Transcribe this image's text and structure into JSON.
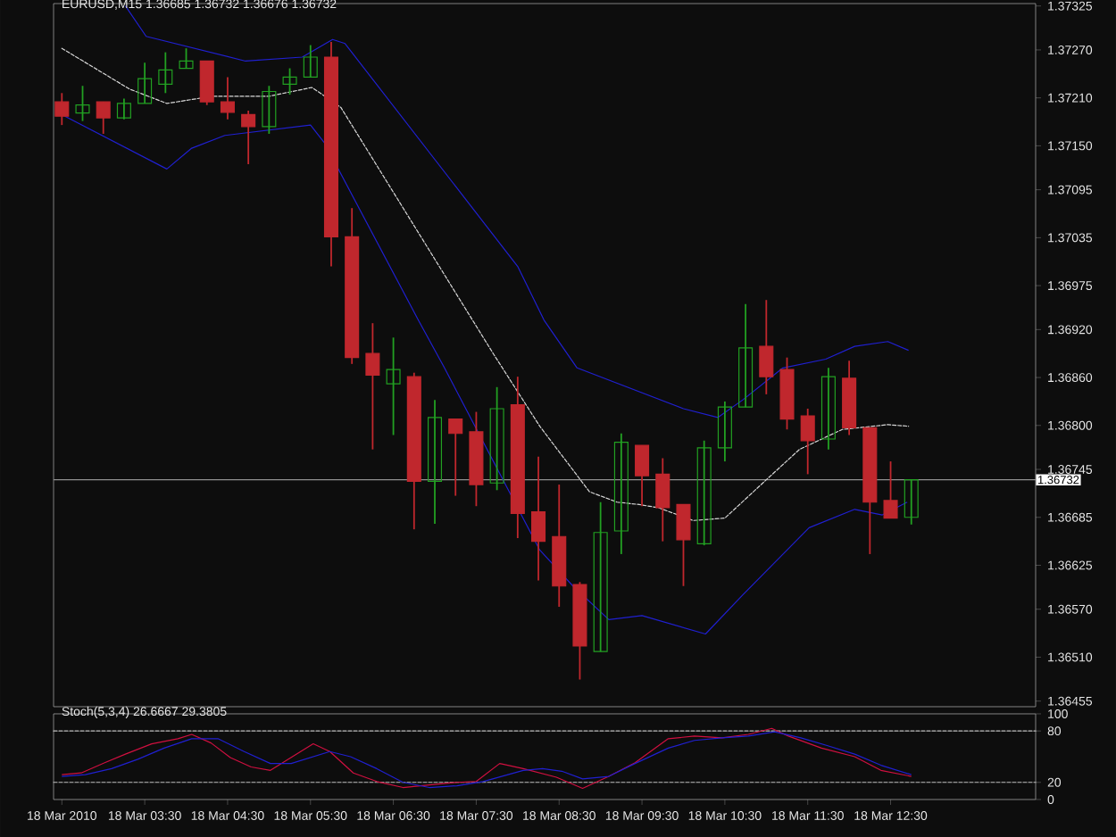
{
  "chart_data": [
    {
      "type": "candlestick",
      "title": "EURUSD,M15 1.36685 1.36732 1.36676 1.36732",
      "x": [
        "2010-03-18T02:30",
        "2010-03-18T02:45",
        "2010-03-18T03:00",
        "2010-03-18T03:15",
        "2010-03-18T03:30",
        "2010-03-18T03:45",
        "2010-03-18T04:00",
        "2010-03-18T04:15",
        "2010-03-18T04:30",
        "2010-03-18T04:45",
        "2010-03-18T05:00",
        "2010-03-18T05:15",
        "2010-03-18T05:30",
        "2010-03-18T05:45",
        "2010-03-18T06:00",
        "2010-03-18T06:15",
        "2010-03-18T06:30",
        "2010-03-18T06:45",
        "2010-03-18T07:00",
        "2010-03-18T07:15",
        "2010-03-18T07:30",
        "2010-03-18T07:45",
        "2010-03-18T08:00",
        "2010-03-18T08:15",
        "2010-03-18T08:30",
        "2010-03-18T08:45",
        "2010-03-18T09:00",
        "2010-03-18T09:15",
        "2010-03-18T09:30",
        "2010-03-18T09:45",
        "2010-03-18T10:00",
        "2010-03-18T10:15",
        "2010-03-18T10:30",
        "2010-03-18T10:45",
        "2010-03-18T11:00",
        "2010-03-18T11:15",
        "2010-03-18T11:30",
        "2010-03-18T11:45",
        "2010-03-18T12:00",
        "2010-03-18T12:15",
        "2010-03-18T12:30",
        "2010-03-18T12:45"
      ],
      "ohlc": [
        [
          1.37205,
          1.37216,
          1.37176,
          1.37187
        ],
        [
          1.37191,
          1.37225,
          1.37181,
          1.37201
        ],
        [
          1.37205,
          1.37205,
          1.37165,
          1.37185
        ],
        [
          1.37185,
          1.37209,
          1.37183,
          1.37203
        ],
        [
          1.37203,
          1.37254,
          1.37203,
          1.37234
        ],
        [
          1.37227,
          1.37267,
          1.37216,
          1.37245
        ],
        [
          1.37247,
          1.37272,
          1.37247,
          1.37256
        ],
        [
          1.37256,
          1.37256,
          1.37201,
          1.37205
        ],
        [
          1.37205,
          1.37236,
          1.37183,
          1.37192
        ],
        [
          1.37189,
          1.37194,
          1.37127,
          1.37174
        ],
        [
          1.37174,
          1.37225,
          1.37165,
          1.37218
        ],
        [
          1.37227,
          1.37247,
          1.37214,
          1.37236
        ],
        [
          1.37236,
          1.37276,
          1.37236,
          1.37261
        ],
        [
          1.37261,
          1.3728,
          1.36999,
          1.37036
        ],
        [
          1.37036,
          1.37072,
          1.36877,
          1.36885
        ],
        [
          1.3689,
          1.36928,
          1.3677,
          1.36863
        ],
        [
          1.36852,
          1.3691,
          1.36788,
          1.3687
        ],
        [
          1.36861,
          1.36866,
          1.3667,
          1.3673
        ],
        [
          1.3673,
          1.36832,
          1.36677,
          1.3681
        ],
        [
          1.36808,
          1.36808,
          1.36712,
          1.3679
        ],
        [
          1.36792,
          1.36817,
          1.36699,
          1.36726
        ],
        [
          1.36728,
          1.36848,
          1.36719,
          1.36821
        ],
        [
          1.36826,
          1.36861,
          1.36659,
          1.3669
        ],
        [
          1.36692,
          1.36761,
          1.36606,
          1.36655
        ],
        [
          1.36661,
          1.36726,
          1.36573,
          1.36599
        ],
        [
          1.36601,
          1.36604,
          1.36482,
          1.36524
        ],
        [
          1.36517,
          1.36704,
          1.36517,
          1.36666
        ],
        [
          1.36668,
          1.3679,
          1.36639,
          1.36779
        ],
        [
          1.36775,
          1.36775,
          1.36699,
          1.36737
        ],
        [
          1.36739,
          1.36759,
          1.36655,
          1.36697
        ],
        [
          1.36701,
          1.36701,
          1.36599,
          1.36657
        ],
        [
          1.36652,
          1.36781,
          1.3665,
          1.36772
        ],
        [
          1.36772,
          1.3683,
          1.36755,
          1.36823
        ],
        [
          1.36823,
          1.36952,
          1.36823,
          1.36897
        ],
        [
          1.36899,
          1.36957,
          1.36839,
          1.36861
        ],
        [
          1.3687,
          1.36885,
          1.36795,
          1.36808
        ],
        [
          1.36812,
          1.36821,
          1.36739,
          1.36781
        ],
        [
          1.36783,
          1.36872,
          1.3677,
          1.36861
        ],
        [
          1.36859,
          1.36881,
          1.36788,
          1.36797
        ],
        [
          1.36797,
          1.36797,
          1.36639,
          1.36704
        ],
        [
          1.36706,
          1.36755,
          1.36684,
          1.36684
        ],
        [
          1.36685,
          1.36732,
          1.36676,
          1.36732
        ]
      ],
      "colors": [
        "#c0272d",
        "#22a022",
        "#c0272d",
        "#22a022",
        "#22a022",
        "#22a022",
        "#22a022",
        "#c0272d",
        "#c0272d",
        "#c0272d",
        "#22a022",
        "#22a022",
        "#22a022",
        "#c0272d",
        "#c0272d",
        "#c0272d",
        "#22a022",
        "#c0272d",
        "#22a022",
        "#c0272d",
        "#c0272d",
        "#22a022",
        "#c0272d",
        "#c0272d",
        "#c0272d",
        "#c0272d",
        "#22a022",
        "#22a022",
        "#c0272d",
        "#c0272d",
        "#c0272d",
        "#22a022",
        "#22a022",
        "#22a022",
        "#c0272d",
        "#c0272d",
        "#c0272d",
        "#22a022",
        "#c0272d",
        "#c0272d",
        "#c0272d",
        "#22a022"
      ],
      "series": [
        {
          "type": "line",
          "color": "#2020d0",
          "x": [
            "2010-03-18T03:16",
            "2010-03-18T03:31",
            "2010-03-18T04:43",
            "2010-03-18T05:24",
            "2010-03-18T05:46",
            "2010-03-18T05:55",
            "2010-03-18T08:00",
            "2010-03-18T08:19",
            "2010-03-18T08:43",
            "2010-03-18T10:00",
            "2010-03-18T10:25",
            "2010-03-18T10:43",
            "2010-03-18T11:12",
            "2010-03-18T11:43",
            "2010-03-18T12:04",
            "2010-03-18T12:28",
            "2010-03-18T12:43"
          ],
          "values": [
            1.37325,
            1.37287,
            1.37256,
            1.37261,
            1.37283,
            1.37278,
            1.36999,
            1.36932,
            1.36872,
            1.36821,
            1.3681,
            1.36832,
            1.36872,
            1.36883,
            1.36899,
            1.36905,
            1.36894
          ]
        },
        {
          "type": "line",
          "color": "#d8d8d8",
          "line_style": "dashed",
          "x": [
            "2010-03-18T02:30",
            "2010-03-18T03:19",
            "2010-03-18T03:46",
            "2010-03-18T04:19",
            "2010-03-18T05:00",
            "2010-03-18T05:31",
            "2010-03-18T05:37",
            "2010-03-18T05:52",
            "2010-03-18T07:43",
            "2010-03-18T08:16",
            "2010-03-18T08:52",
            "2010-03-18T09:12",
            "2010-03-18T09:28",
            "2010-03-18T09:42",
            "2010-03-18T10:07",
            "2010-03-18T10:30",
            "2010-03-18T11:00",
            "2010-03-18T11:24",
            "2010-03-18T11:55",
            "2010-03-18T12:28",
            "2010-03-18T12:43"
          ],
          "values": [
            1.37272,
            1.37221,
            1.37203,
            1.37212,
            1.37212,
            1.37223,
            1.37216,
            1.37198,
            1.36888,
            1.36799,
            1.36717,
            1.36704,
            1.36701,
            1.36697,
            1.36681,
            1.36684,
            1.36732,
            1.3677,
            1.36795,
            1.36801,
            1.36799
          ]
        },
        {
          "type": "line",
          "color": "#2020d0",
          "x": [
            "2010-03-18T02:30",
            "2010-03-18T03:46",
            "2010-03-18T04:04",
            "2010-03-18T04:28",
            "2010-03-18T05:30",
            "2010-03-18T05:40",
            "2010-03-18T06:48",
            "2010-03-18T07:07",
            "2010-03-18T08:16",
            "2010-03-18T08:40",
            "2010-03-18T09:06",
            "2010-03-18T09:30",
            "2010-03-18T10:16",
            "2010-03-18T10:43",
            "2010-03-18T11:31",
            "2010-03-18T12:04",
            "2010-03-18T12:24",
            "2010-03-18T12:42"
          ],
          "values": [
            1.37189,
            1.37121,
            1.37147,
            1.37163,
            1.37176,
            1.37154,
            1.36932,
            1.36872,
            1.36644,
            1.36599,
            1.36557,
            1.36562,
            1.36539,
            1.36588,
            1.36672,
            1.36695,
            1.36688,
            1.36704
          ]
        }
      ],
      "xlim": [
        "2010-03-18T02:24",
        "2010-03-18T14:15"
      ],
      "ylim": [
        1.36448,
        1.37328
      ],
      "yticks": [
        1.37325,
        {
          "value": 1.3727,
          "label": "1.37270"
        },
        {
          "value": 1.3721,
          "label": "1.37210"
        },
        {
          "value": 1.3715,
          "label": "1.37150"
        },
        1.37095,
        1.37035,
        1.36975,
        {
          "value": 1.3692,
          "label": "1.36920"
        },
        {
          "value": 1.3686,
          "label": "1.36860"
        },
        {
          "value": 1.368,
          "label": "1.36800"
        },
        1.36745,
        1.36685,
        1.36625,
        {
          "value": 1.3657,
          "label": "1.36570"
        },
        {
          "value": 1.3651,
          "label": "1.36510"
        },
        1.36455
      ],
      "ref_lines": [
        {
          "axis": "y",
          "value": 1.36732,
          "label": "1.36732",
          "color": "#909090"
        }
      ],
      "tick_labels": "y"
    },
    {
      "type": "line",
      "title": "Stoch(5,3,4) 26.6667 29.3805",
      "series": [
        {
          "color": "#d01040",
          "x": [
            "2010-03-18T02:30",
            "2010-03-18T02:44",
            "2010-03-18T03:01",
            "2010-03-18T03:16",
            "2010-03-18T03:35",
            "2010-03-18T03:54",
            "2010-03-18T04:04",
            "2010-03-18T04:18",
            "2010-03-18T04:32",
            "2010-03-18T04:47",
            "2010-03-18T05:01",
            "2010-03-18T05:20",
            "2010-03-18T05:32",
            "2010-03-18T05:44",
            "2010-03-18T06:01",
            "2010-03-18T06:18",
            "2010-03-18T06:37",
            "2010-03-18T06:56",
            "2010-03-18T07:16",
            "2010-03-18T07:30",
            "2010-03-18T07:47",
            "2010-03-18T08:04",
            "2010-03-18T08:28",
            "2010-03-18T08:47",
            "2010-03-18T09:06",
            "2010-03-18T09:25",
            "2010-03-18T09:49",
            "2010-03-18T10:08",
            "2010-03-18T10:28",
            "2010-03-18T10:47",
            "2010-03-18T11:04",
            "2010-03-18T11:16",
            "2010-03-18T11:40",
            "2010-03-18T12:04",
            "2010-03-18T12:23",
            "2010-03-18T12:45"
          ],
          "values": [
            29,
            31,
            43,
            53,
            65,
            71,
            76,
            66,
            49,
            38,
            34,
            53,
            65,
            56,
            31,
            21,
            14,
            17,
            20,
            21,
            42,
            36,
            26,
            13,
            27,
            43,
            71,
            74,
            72,
            76,
            83,
            74,
            60,
            50,
            34,
            27
          ]
        },
        {
          "color": "#2020d0",
          "x": [
            "2010-03-18T02:30",
            "2010-03-18T02:47",
            "2010-03-18T03:06",
            "2010-03-18T03:25",
            "2010-03-18T03:44",
            "2010-03-18T04:04",
            "2010-03-18T04:23",
            "2010-03-18T04:42",
            "2010-03-18T05:01",
            "2010-03-18T05:16",
            "2010-03-18T05:30",
            "2010-03-18T05:44",
            "2010-03-18T05:59",
            "2010-03-18T06:18",
            "2010-03-18T06:37",
            "2010-03-18T06:56",
            "2010-03-18T07:16",
            "2010-03-18T07:35",
            "2010-03-18T08:04",
            "2010-03-18T08:18",
            "2010-03-18T08:32",
            "2010-03-18T08:47",
            "2010-03-18T09:06",
            "2010-03-18T09:25",
            "2010-03-18T09:49",
            "2010-03-18T10:08",
            "2010-03-18T10:28",
            "2010-03-18T10:47",
            "2010-03-18T11:06",
            "2010-03-18T11:25",
            "2010-03-18T11:44",
            "2010-03-18T12:04",
            "2010-03-18T12:23",
            "2010-03-18T12:45"
          ],
          "values": [
            27,
            29,
            36,
            47,
            60,
            71,
            71,
            56,
            42,
            42,
            49,
            56,
            50,
            36,
            20,
            14,
            16,
            21,
            34,
            36,
            33,
            24,
            27,
            42,
            60,
            69,
            72,
            74,
            79,
            72,
            63,
            53,
            40,
            29
          ]
        }
      ],
      "xlim": [
        "2010-03-18T02:24",
        "2010-03-18T14:15"
      ],
      "ylim": [
        0,
        100
      ],
      "xticks": [
        {
          "value": "2010-03-18T02:30",
          "label": "18 Mar 2010"
        },
        {
          "value": "2010-03-18T03:30",
          "label": "18 Mar 03:30"
        },
        {
          "value": "2010-03-18T04:30",
          "label": "18 Mar 04:30"
        },
        {
          "value": "2010-03-18T05:30",
          "label": "18 Mar 05:30"
        },
        {
          "value": "2010-03-18T06:30",
          "label": "18 Mar 06:30"
        },
        {
          "value": "2010-03-18T07:30",
          "label": "18 Mar 07:30"
        },
        {
          "value": "2010-03-18T08:30",
          "label": "18 Mar 08:30"
        },
        {
          "value": "2010-03-18T09:30",
          "label": "18 Mar 09:30"
        },
        {
          "value": "2010-03-18T10:30",
          "label": "18 Mar 10:30"
        },
        {
          "value": "2010-03-18T11:30",
          "label": "18 Mar 11:30"
        },
        {
          "value": "2010-03-18T12:30",
          "label": "18 Mar 12:30"
        }
      ],
      "yticks": [
        0,
        20,
        80,
        100
      ],
      "ref_lines": [
        {
          "axis": "y",
          "value": 80,
          "color": "#c0c0c0",
          "line_style": "dashed"
        },
        {
          "axis": "y",
          "value": 20,
          "color": "#c0c0c0",
          "line_style": "dashed"
        }
      ]
    }
  ]
}
